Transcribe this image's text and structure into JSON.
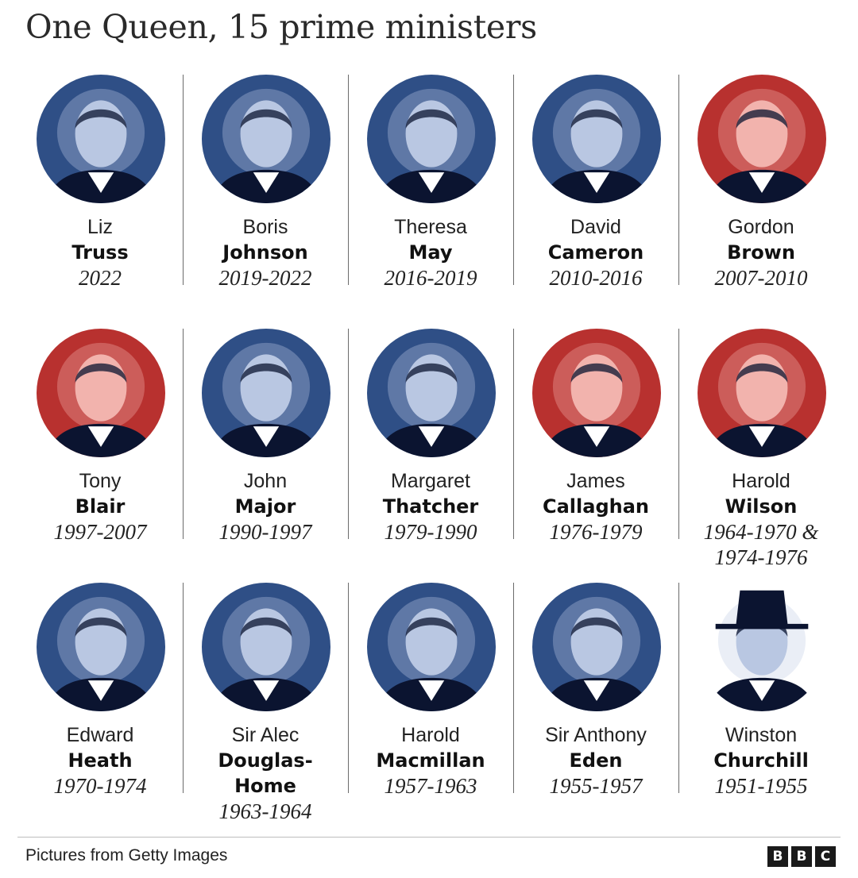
{
  "title": "One Queen, 15 prime ministers",
  "tint": {
    "blue": "#2f4f86",
    "blue_light": "#b9c7e2",
    "red": "#b8312f",
    "red_light": "#f2b3ad",
    "navy": "#0b1430"
  },
  "ministers": [
    {
      "first": "Liz",
      "last": "Truss",
      "years": [
        "2022"
      ],
      "tint": "blue"
    },
    {
      "first": "Boris",
      "last": "Johnson",
      "years": [
        "2019-2022"
      ],
      "tint": "blue"
    },
    {
      "first": "Theresa",
      "last": "May",
      "years": [
        "2016-2019"
      ],
      "tint": "blue"
    },
    {
      "first": "David",
      "last": "Cameron",
      "years": [
        "2010-2016"
      ],
      "tint": "blue"
    },
    {
      "first": "Gordon",
      "last": "Brown",
      "years": [
        "2007-2010"
      ],
      "tint": "red"
    },
    {
      "first": "Tony",
      "last": "Blair",
      "years": [
        "1997-2007"
      ],
      "tint": "red"
    },
    {
      "first": "John",
      "last": "Major",
      "years": [
        "1990-1997"
      ],
      "tint": "blue"
    },
    {
      "first": "Margaret",
      "last": "Thatcher",
      "years": [
        "1979-1990"
      ],
      "tint": "blue"
    },
    {
      "first": "James",
      "last": "Callaghan",
      "years": [
        "1976-1979"
      ],
      "tint": "red"
    },
    {
      "first": "Harold",
      "last": "Wilson",
      "years": [
        "1964-1970 &",
        "1974-1976"
      ],
      "tint": "red"
    },
    {
      "first": "Edward",
      "last": "Heath",
      "years": [
        "1970-1974"
      ],
      "tint": "blue"
    },
    {
      "first": "Sir Alec",
      "last": [
        "Douglas-",
        "Home"
      ],
      "years": [
        "1963-1964"
      ],
      "tint": "blue"
    },
    {
      "first": "Harold",
      "last": "Macmillan",
      "years": [
        "1957-1963"
      ],
      "tint": "blue"
    },
    {
      "first": "Sir Anthony",
      "last": "Eden",
      "years": [
        "1955-1957"
      ],
      "tint": "blue"
    },
    {
      "first": "Winston",
      "last": "Churchill",
      "years": [
        "1951-1955"
      ],
      "tint": "blue"
    }
  ],
  "footer": {
    "credit": "Pictures from Getty Images",
    "logo_letters": [
      "B",
      "B",
      "C"
    ]
  }
}
